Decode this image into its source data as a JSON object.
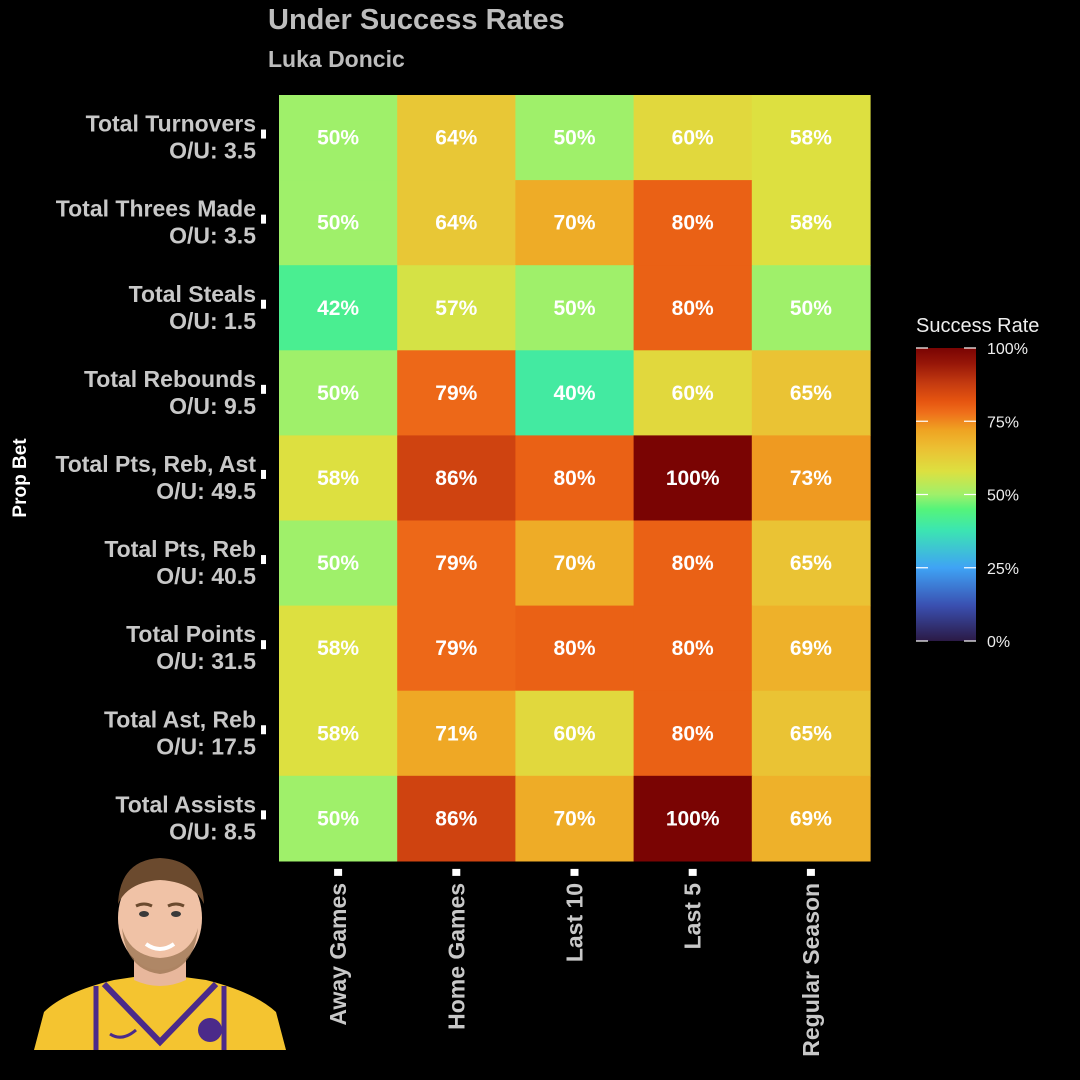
{
  "title": "Under Success Rates",
  "subtitle": "Luka Doncic",
  "chart_data": {
    "type": "heatmap",
    "title": "Under Success Rates",
    "subtitle": "Luka Doncic",
    "ylabel": "Prop Bet",
    "xlabel": "",
    "columns": [
      "Away Games",
      "Home Games",
      "Last 10",
      "Last 5",
      "Regular Season"
    ],
    "rows": [
      {
        "name": "Total Turnovers",
        "line": "O/U: 3.5"
      },
      {
        "name": "Total Threes Made",
        "line": "O/U: 3.5"
      },
      {
        "name": "Total Steals",
        "line": "O/U: 1.5"
      },
      {
        "name": "Total Rebounds",
        "line": "O/U: 9.5"
      },
      {
        "name": "Total Pts, Reb, Ast",
        "line": "O/U: 49.5"
      },
      {
        "name": "Total Pts, Reb",
        "line": "O/U: 40.5"
      },
      {
        "name": "Total Points",
        "line": "O/U: 31.5"
      },
      {
        "name": "Total Ast, Reb",
        "line": "O/U: 17.5"
      },
      {
        "name": "Total Assists",
        "line": "O/U: 8.5"
      }
    ],
    "values": [
      [
        50,
        64,
        50,
        60,
        58
      ],
      [
        50,
        64,
        70,
        80,
        58
      ],
      [
        42,
        57,
        50,
        80,
        50
      ],
      [
        50,
        79,
        40,
        60,
        65
      ],
      [
        58,
        86,
        80,
        100,
        73
      ],
      [
        50,
        79,
        70,
        80,
        65
      ],
      [
        58,
        79,
        80,
        80,
        69
      ],
      [
        58,
        71,
        60,
        80,
        65
      ],
      [
        50,
        86,
        70,
        100,
        69
      ]
    ],
    "value_format": "%",
    "color_scale": {
      "name": "Success Rate",
      "range": [
        0,
        100
      ],
      "ticks": [
        "0%",
        "25%",
        "50%",
        "75%",
        "100%"
      ],
      "stops": [
        {
          "v": 0,
          "color": "#2b1a45"
        },
        {
          "v": 12,
          "color": "#3a4fb0"
        },
        {
          "v": 25,
          "color": "#3fa3f5"
        },
        {
          "v": 38,
          "color": "#3ce6b0"
        },
        {
          "v": 45,
          "color": "#55f47a"
        },
        {
          "v": 50,
          "color": "#9ff06a"
        },
        {
          "v": 58,
          "color": "#dde040"
        },
        {
          "v": 66,
          "color": "#ecbf32"
        },
        {
          "v": 72,
          "color": "#efa322"
        },
        {
          "v": 78,
          "color": "#ef6e1a"
        },
        {
          "v": 82,
          "color": "#e55410"
        },
        {
          "v": 88,
          "color": "#c43a10"
        },
        {
          "v": 95,
          "color": "#951508"
        },
        {
          "v": 100,
          "color": "#7a0403"
        }
      ]
    },
    "background": "#000000"
  }
}
